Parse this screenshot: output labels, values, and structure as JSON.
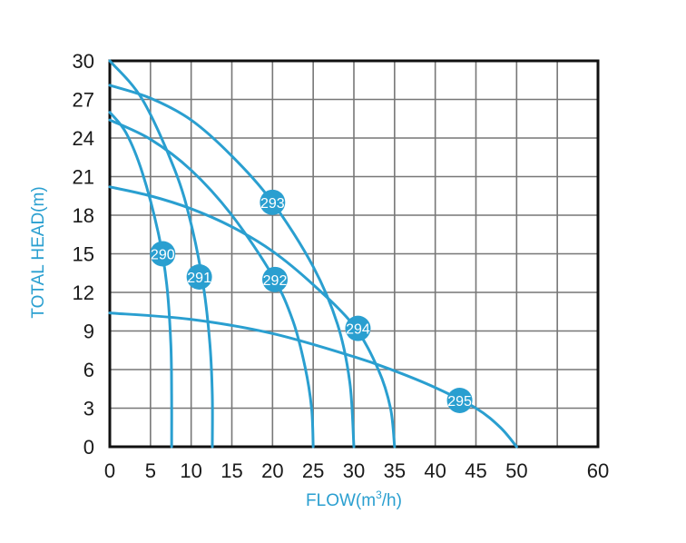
{
  "chart_data": {
    "type": "line",
    "xlabel_main": "FLOW(m",
    "xlabel_sup": "3",
    "xlabel_tail": "/h)",
    "ylabel": "TOTAL HEAD(m)",
    "xlim": [
      0,
      60
    ],
    "ylim": [
      0,
      30
    ],
    "x_ticks": [
      0,
      5,
      10,
      15,
      20,
      25,
      30,
      35,
      40,
      45,
      50,
      60
    ],
    "y_ticks": [
      0,
      3,
      6,
      9,
      12,
      15,
      18,
      21,
      24,
      27,
      30
    ],
    "x_tick_labels": [
      "0",
      "5",
      "10",
      "15",
      "20",
      "25",
      "30",
      "35",
      "40",
      "45",
      "50",
      "60"
    ],
    "y_tick_labels": [
      "0",
      "3",
      "6",
      "9",
      "12",
      "15",
      "18",
      "21",
      "24",
      "27",
      "30"
    ],
    "x_grid_lines": [
      0,
      5,
      10,
      15,
      20,
      25,
      30,
      35,
      40,
      45,
      50,
      55,
      60
    ],
    "curve_color": "#2a9fd0",
    "series": [
      {
        "name": "290",
        "label": "290",
        "label_at": [
          6.5,
          15.0
        ],
        "points": [
          [
            0,
            26.0
          ],
          [
            2,
            24.4
          ],
          [
            4,
            21.3
          ],
          [
            6,
            16.5
          ],
          [
            7,
            12.6
          ],
          [
            7.5,
            8.0
          ],
          [
            7.6,
            4.0
          ],
          [
            7.6,
            0
          ]
        ]
      },
      {
        "name": "291",
        "label": "291",
        "label_at": [
          11.0,
          13.2
        ],
        "points": [
          [
            0,
            30.0
          ],
          [
            4,
            27.0
          ],
          [
            8,
            21.5
          ],
          [
            10,
            17.3
          ],
          [
            11.5,
            12.5
          ],
          [
            12.3,
            8.0
          ],
          [
            12.6,
            4.0
          ],
          [
            12.6,
            0
          ]
        ]
      },
      {
        "name": "292",
        "label": "292",
        "label_at": [
          20.3,
          13.0
        ],
        "points": [
          [
            0,
            25.4
          ],
          [
            5,
            23.9
          ],
          [
            10,
            21.5
          ],
          [
            15,
            18.0
          ],
          [
            20,
            13.3
          ],
          [
            22.5,
            9.8
          ],
          [
            24,
            6.2
          ],
          [
            24.8,
            3.0
          ],
          [
            25.0,
            0
          ]
        ]
      },
      {
        "name": "293",
        "label": "293",
        "label_at": [
          20.0,
          19.0
        ],
        "points": [
          [
            0,
            28.1
          ],
          [
            5,
            27.1
          ],
          [
            10,
            25.4
          ],
          [
            15,
            22.6
          ],
          [
            20,
            19.0
          ],
          [
            25,
            14.0
          ],
          [
            28,
            9.5
          ],
          [
            29.5,
            5.0
          ],
          [
            30.0,
            0
          ]
        ]
      },
      {
        "name": "294",
        "label": "294",
        "label_at": [
          30.5,
          9.2
        ],
        "points": [
          [
            0,
            20.2
          ],
          [
            5,
            19.5
          ],
          [
            10,
            18.5
          ],
          [
            15,
            17.1
          ],
          [
            20,
            15.2
          ],
          [
            25,
            12.6
          ],
          [
            30,
            9.4
          ],
          [
            33,
            6.0
          ],
          [
            34.5,
            3.0
          ],
          [
            35.0,
            0
          ]
        ]
      },
      {
        "name": "295",
        "label": "295",
        "label_at": [
          43.0,
          3.6
        ],
        "points": [
          [
            0,
            10.4
          ],
          [
            10,
            9.9
          ],
          [
            20,
            8.8
          ],
          [
            30,
            7.0
          ],
          [
            35,
            5.9
          ],
          [
            40,
            4.6
          ],
          [
            45,
            3.0
          ],
          [
            48,
            1.5
          ],
          [
            50,
            0
          ]
        ]
      }
    ]
  }
}
